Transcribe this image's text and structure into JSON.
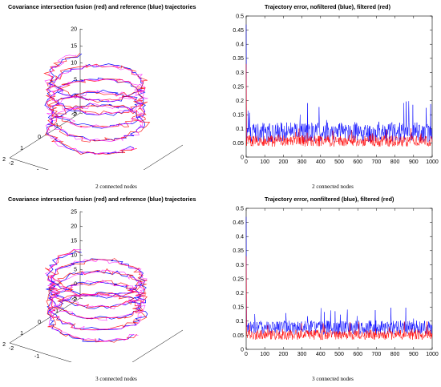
{
  "colors": {
    "filtered": "#ff0000",
    "nonfiltered": "#0000ff",
    "fusion": "#ff00ff",
    "axis": "#000000"
  },
  "panels": [
    {
      "title": "Covariance intersection fusion (red) and reference (blue) trajectories",
      "caption": "2 connected nodes"
    },
    {
      "title": "Trajectory error, nofiltered (blue), filtered (red)",
      "caption": "2 connected nodes"
    },
    {
      "title": "Covariance intersection fusion (red) and reference (blue) trajectories",
      "caption": "3 connected nodes"
    },
    {
      "title": "Trajectory error, nonfiltered (blue), filtered (red)",
      "caption": "3 connected nodes"
    }
  ],
  "chart_data": [
    {
      "type": "line3d",
      "title": "Covariance intersection fusion (red) and reference (blue) trajectories",
      "series": [
        {
          "name": "fusion",
          "color": "#ff0000"
        },
        {
          "name": "reference",
          "color": "#0000ff"
        }
      ],
      "helix": {
        "radius": 1.5,
        "turns": 4.6,
        "z_start": 0,
        "z_end": 18
      },
      "xlim": [
        -2,
        2
      ],
      "ylim": [
        -2,
        2
      ],
      "zlim": [
        -5,
        20
      ],
      "xticks": [
        -2,
        -1,
        0,
        1,
        2
      ],
      "yticks": [
        -2,
        -1,
        0,
        1,
        2
      ],
      "zticks": [
        -5,
        0,
        5,
        10,
        15,
        20
      ],
      "grid": false
    },
    {
      "type": "line",
      "title": "Trajectory error, nofiltered (blue), filtered (red)",
      "x_range": [
        0,
        1000
      ],
      "ylim": [
        0,
        0.5
      ],
      "xticks": [
        0,
        100,
        200,
        300,
        400,
        500,
        600,
        700,
        800,
        900,
        1000
      ],
      "yticks": [
        0,
        0.05,
        0.1,
        0.15,
        0.2,
        0.25,
        0.3,
        0.35,
        0.4,
        0.45,
        0.5
      ],
      "series": [
        {
          "name": "nonfiltered",
          "color": "#0000ff",
          "mean": 0.085,
          "spread": 0.035,
          "max": 0.2,
          "start_value": 0.47
        },
        {
          "name": "filtered",
          "color": "#ff0000",
          "mean": 0.055,
          "spread": 0.02,
          "max": 0.11,
          "start_value": 0.33
        }
      ],
      "grid": false
    },
    {
      "type": "line3d",
      "title": "Covariance intersection fusion (red) and reference (blue) trajectories",
      "series": [
        {
          "name": "fusion",
          "color": "#ff0000"
        },
        {
          "name": "reference",
          "color": "#0000ff"
        }
      ],
      "helix": {
        "radius": 1.5,
        "turns": 4.6,
        "z_start": 0,
        "z_end": 18
      },
      "xlim": [
        -2,
        2
      ],
      "ylim": [
        -2,
        2
      ],
      "zlim": [
        -5,
        25
      ],
      "xticks": [
        -2,
        -1,
        0,
        1,
        2
      ],
      "yticks": [
        -2,
        -1,
        0,
        1,
        2
      ],
      "zticks": [
        -5,
        0,
        5,
        10,
        15,
        20,
        25
      ],
      "grid": false
    },
    {
      "type": "line",
      "title": "Trajectory error, nonfiltered (blue), filtered (red)",
      "x_range": [
        0,
        1000
      ],
      "ylim": [
        0,
        0.5
      ],
      "xticks": [
        0,
        100,
        200,
        300,
        400,
        500,
        600,
        700,
        800,
        900,
        1000
      ],
      "yticks": [
        0,
        0.05,
        0.1,
        0.15,
        0.2,
        0.25,
        0.3,
        0.35,
        0.4,
        0.45,
        0.5
      ],
      "series": [
        {
          "name": "nonfiltered",
          "color": "#0000ff",
          "mean": 0.075,
          "spread": 0.025,
          "max": 0.15,
          "start_value": 0.47
        },
        {
          "name": "filtered",
          "color": "#ff0000",
          "mean": 0.05,
          "spread": 0.018,
          "max": 0.1,
          "start_value": 0.33
        }
      ],
      "grid": false
    }
  ]
}
